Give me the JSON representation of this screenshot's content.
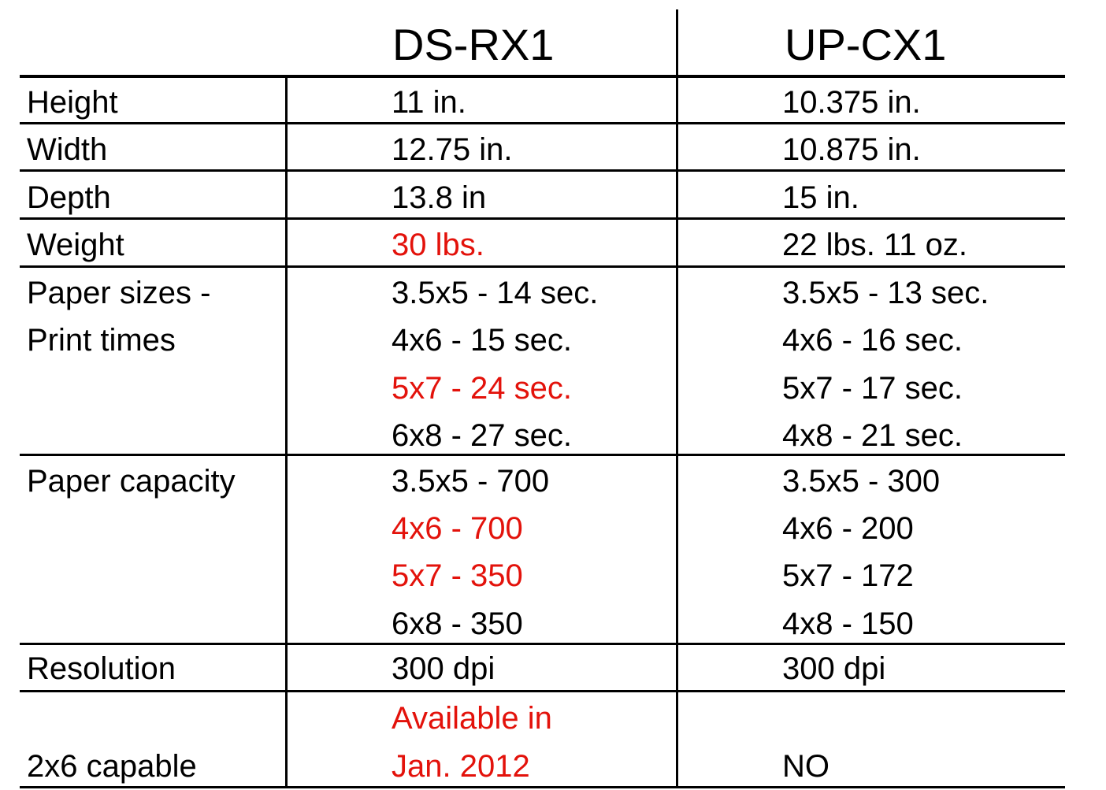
{
  "columns": [
    "DS-RX1",
    "UP-CX1"
  ],
  "rows": [
    {
      "label": [
        "Height"
      ],
      "ds": [
        {
          "text": "11 in.",
          "highlight": false
        }
      ],
      "up": [
        {
          "text": "10.375 in.",
          "highlight": false
        }
      ]
    },
    {
      "label": [
        "Width"
      ],
      "ds": [
        {
          "text": "12.75 in.",
          "highlight": false
        }
      ],
      "up": [
        {
          "text": "10.875 in.",
          "highlight": false
        }
      ]
    },
    {
      "label": [
        "Depth"
      ],
      "ds": [
        {
          "text": "13.8 in",
          "highlight": false
        }
      ],
      "up": [
        {
          "text": "15 in.",
          "highlight": false
        }
      ]
    },
    {
      "label": [
        "Weight"
      ],
      "ds": [
        {
          "text": "30 lbs.",
          "highlight": true
        }
      ],
      "up": [
        {
          "text": "22 lbs. 11 oz.",
          "highlight": false
        }
      ]
    },
    {
      "label": [
        "Paper sizes -",
        "Print times"
      ],
      "ds": [
        {
          "text": "3.5x5 - 14 sec.",
          "highlight": false
        },
        {
          "text": "4x6 - 15 sec.",
          "highlight": false
        },
        {
          "text": "5x7 - 24 sec.",
          "highlight": true
        },
        {
          "text": "6x8 - 27 sec.",
          "highlight": false
        }
      ],
      "up": [
        {
          "text": "3.5x5 - 13 sec.",
          "highlight": false
        },
        {
          "text": "4x6 - 16 sec.",
          "highlight": false
        },
        {
          "text": "5x7 - 17 sec.",
          "highlight": false
        },
        {
          "text": "4x8 - 21 sec.",
          "highlight": false
        }
      ]
    },
    {
      "label": [
        "Paper capacity"
      ],
      "ds": [
        {
          "text": "3.5x5 - 700",
          "highlight": false
        },
        {
          "text": "4x6 - 700",
          "highlight": true
        },
        {
          "text": "5x7 - 350",
          "highlight": true
        },
        {
          "text": "6x8 - 350",
          "highlight": false
        }
      ],
      "up": [
        {
          "text": "3.5x5 - 300",
          "highlight": false
        },
        {
          "text": "4x6 - 200",
          "highlight": false
        },
        {
          "text": "5x7 - 172",
          "highlight": false
        },
        {
          "text": "4x8 - 150",
          "highlight": false
        }
      ]
    },
    {
      "label": [
        "Resolution"
      ],
      "ds": [
        {
          "text": "300 dpi",
          "highlight": false
        }
      ],
      "up": [
        {
          "text": "300 dpi",
          "highlight": false
        }
      ]
    },
    {
      "label": [
        "2x6 capable"
      ],
      "ds": [
        {
          "text": "Available in",
          "highlight": true
        },
        {
          "text": "Jan. 2012",
          "highlight": true
        }
      ],
      "up": [
        {
          "text": "NO",
          "highlight": false
        }
      ]
    }
  ],
  "colors": {
    "text": "#000000",
    "highlight": "#e3120b",
    "rule": "#000000"
  }
}
